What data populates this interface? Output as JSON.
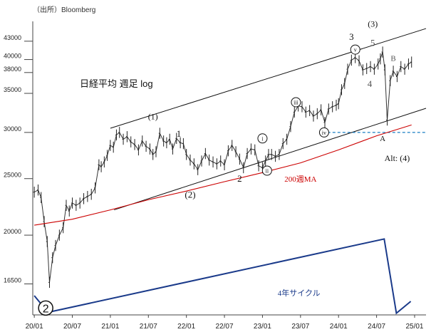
{
  "source": "（出所）Bloomberg",
  "chart_data": {
    "type": "line",
    "title": "日経平均 週足 log",
    "scale": "log",
    "ylim": [
      14600,
      46500
    ],
    "y_ticks": [
      {
        "label": "43000",
        "value": 43000
      },
      {
        "label": "40000",
        "value": 40000
      },
      {
        "label": "38000",
        "value": 38000
      },
      {
        "label": "35000",
        "value": 35000
      },
      {
        "label": "30000",
        "value": 30000
      },
      {
        "label": "25000",
        "value": 25000
      },
      {
        "label": "20000",
        "value": 20000
      },
      {
        "label": "16500",
        "value": 16500
      }
    ],
    "x_ticks": [
      {
        "label": "20/01",
        "value": 2020.0
      },
      {
        "label": "20/07",
        "value": 2020.5
      },
      {
        "label": "21/01",
        "value": 2021.0
      },
      {
        "label": "21/07",
        "value": 2021.5
      },
      {
        "label": "22/01",
        "value": 2022.0
      },
      {
        "label": "22/07",
        "value": 2022.5
      },
      {
        "label": "23/01",
        "value": 2023.0
      },
      {
        "label": "23/07",
        "value": 2023.5
      },
      {
        "label": "24/01",
        "value": 2024.0
      },
      {
        "label": "24/07",
        "value": 2024.5
      },
      {
        "label": "25/01",
        "value": 2025.0
      }
    ],
    "xlim": [
      2019.98,
      2025.15
    ],
    "grid": false,
    "series": [
      {
        "name": "日経平均",
        "color": "#333333",
        "x": [
          2020.0,
          2020.05,
          2020.09,
          2020.13,
          2020.17,
          2020.2,
          2020.24,
          2020.28,
          2020.33,
          2020.38,
          2020.42,
          2020.46,
          2020.5,
          2020.55,
          2020.6,
          2020.65,
          2020.7,
          2020.75,
          2020.8,
          2020.85,
          2020.88,
          2020.92,
          2020.96,
          2021.0,
          2021.04,
          2021.08,
          2021.12,
          2021.17,
          2021.22,
          2021.27,
          2021.32,
          2021.37,
          2021.42,
          2021.47,
          2021.52,
          2021.56,
          2021.6,
          2021.65,
          2021.7,
          2021.74,
          2021.78,
          2021.82,
          2021.87,
          2021.92,
          2021.96,
          2022.0,
          2022.05,
          2022.1,
          2022.15,
          2022.2,
          2022.25,
          2022.3,
          2022.35,
          2022.4,
          2022.45,
          2022.5,
          2022.55,
          2022.6,
          2022.65,
          2022.7,
          2022.75,
          2022.8,
          2022.85,
          2022.9,
          2022.95,
          2023.0,
          2023.04,
          2023.08,
          2023.12,
          2023.17,
          2023.22,
          2023.27,
          2023.32,
          2023.37,
          2023.42,
          2023.47,
          2023.52,
          2023.57,
          2023.62,
          2023.67,
          2023.72,
          2023.77,
          2023.82,
          2023.87,
          2023.92,
          2023.97,
          2024.0,
          2024.04,
          2024.08,
          2024.12,
          2024.17,
          2024.22,
          2024.27,
          2024.32,
          2024.37,
          2024.42,
          2024.47,
          2024.52,
          2024.55,
          2024.58,
          2024.61,
          2024.64,
          2024.68,
          2024.72,
          2024.77,
          2024.82,
          2024.87,
          2024.92,
          2024.96
        ],
        "values": [
          23700,
          23900,
          23200,
          21100,
          19500,
          16600,
          18300,
          19200,
          20000,
          20600,
          22500,
          22000,
          22700,
          22500,
          22700,
          23100,
          23300,
          23500,
          24100,
          26400,
          26200,
          26700,
          27400,
          28500,
          28300,
          29700,
          30000,
          29200,
          29500,
          28900,
          28600,
          28000,
          29000,
          28400,
          28100,
          27500,
          27800,
          29900,
          29000,
          28800,
          29200,
          28100,
          29300,
          28800,
          28700,
          27500,
          26900,
          26500,
          25900,
          26800,
          27600,
          26900,
          26700,
          26500,
          26800,
          26400,
          27900,
          28500,
          27800,
          27000,
          26100,
          27600,
          28100,
          28000,
          26300,
          26100,
          26800,
          27500,
          27500,
          27300,
          27500,
          28700,
          29200,
          30700,
          32500,
          33300,
          33200,
          32500,
          32700,
          32000,
          32300,
          32800,
          31200,
          32900,
          33200,
          33400,
          33600,
          35500,
          36400,
          38500,
          39900,
          40300,
          39800,
          38400,
          38600,
          38900,
          38500,
          39300,
          40100,
          41200,
          38400,
          31500,
          36800,
          38200,
          37400,
          38900,
          38500,
          39300,
          39600
        ]
      },
      {
        "name": "200週MA",
        "color": "#cc0000",
        "x": [
          2020.0,
          2020.5,
          2021.0,
          2021.5,
          2022.0,
          2022.5,
          2023.0,
          2023.5,
          2024.0,
          2024.5,
          2024.96
        ],
        "values": [
          20800,
          21300,
          22100,
          23000,
          23800,
          24700,
          25600,
          26600,
          28000,
          29600,
          30900
        ]
      }
    ],
    "line_color": "#1a3a8a",
    "trend_lines": [
      {
        "x1": 2021.0,
        "y1": 30500,
        "x2": 2025.15,
        "y2": 45200
      },
      {
        "x1": 2021.05,
        "y1": 22100,
        "x2": 2025.15,
        "y2": 33000
      }
    ],
    "horizontal_dashed": {
      "value": 30000,
      "x1": 2023.79,
      "x2": 2025.15
    },
    "cycle_line": {
      "x": [
        2020.0,
        2020.18,
        2024.6,
        2024.76,
        2024.95
      ],
      "values": [
        15750,
        14750,
        19700,
        14700,
        15400
      ]
    },
    "labels": [
      "(1)",
      "1",
      "(2)",
      "2",
      "(3)",
      "3",
      "5",
      "4",
      "B",
      "A",
      "Alt: (4)",
      "200週MA",
      "4年サイクル"
    ],
    "circled_labels": [
      "i",
      "ii",
      "iii",
      "iv",
      "v"
    ],
    "big_circle_label": "2"
  }
}
